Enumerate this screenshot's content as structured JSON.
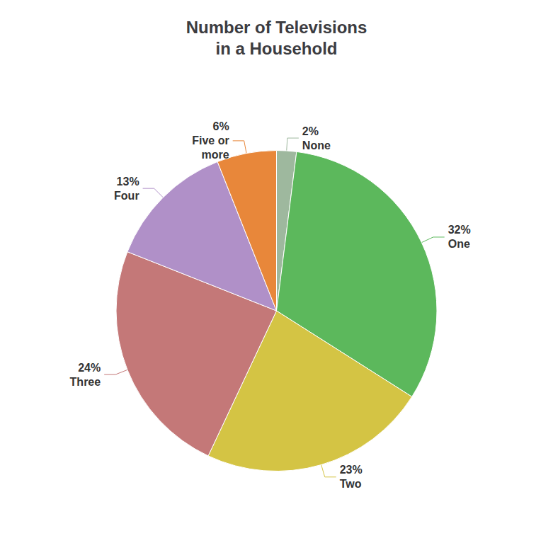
{
  "chart_data": {
    "type": "pie",
    "title": "Number of Televisions\nin a Household",
    "categories": [
      "None",
      "One",
      "Two",
      "Three",
      "Four",
      "Five or\nmore"
    ],
    "values": [
      2,
      32,
      23,
      24,
      13,
      6
    ],
    "value_labels": [
      "2%",
      "32%",
      "23%",
      "24%",
      "13%",
      "6%"
    ],
    "colors": [
      "#9eb89e",
      "#5cb85c",
      "#d4c444",
      "#c47878",
      "#b090c8",
      "#e8873a"
    ],
    "data_labels": true
  }
}
